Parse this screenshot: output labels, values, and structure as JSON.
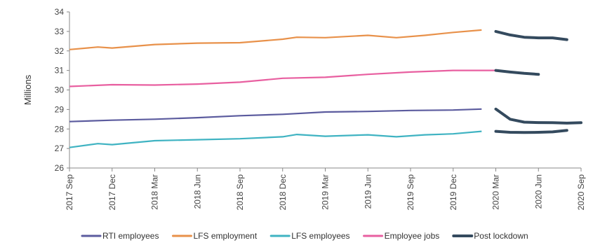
{
  "chart_data": {
    "type": "line",
    "ylabel": "Millions",
    "ylim": [
      26,
      34
    ],
    "yticks": [
      26,
      27,
      28,
      29,
      30,
      31,
      32,
      33,
      34
    ],
    "x_start": "2017 Sep",
    "x_end": "2020 Sep",
    "x_tick_labels": [
      "2017 Sep",
      "2017 Dec",
      "2018 Mar",
      "2018 Jun",
      "2018 Sep",
      "2018 Dec",
      "2019 Mar",
      "2019 Jun",
      "2019 Sep",
      "2019 Dec",
      "2020 Mar",
      "2020 Jun",
      "2020 Sep"
    ],
    "grid": false,
    "legend_position": "bottom",
    "series": [
      {
        "name": "RTI employees",
        "color": "#5b5b9e",
        "points": [
          [
            "2017 Sep",
            28.38
          ],
          [
            "2017 Dec",
            28.45
          ],
          [
            "2018 Mar",
            28.5
          ],
          [
            "2018 Jun",
            28.58
          ],
          [
            "2018 Sep",
            28.68
          ],
          [
            "2018 Dec",
            28.75
          ],
          [
            "2019 Mar",
            28.87
          ],
          [
            "2019 Jun",
            28.9
          ],
          [
            "2019 Sep",
            28.95
          ],
          [
            "2019 Dec",
            28.97
          ],
          [
            "2020 Feb",
            29.02
          ]
        ]
      },
      {
        "name": "LFS employment",
        "color": "#e8914a",
        "points": [
          [
            "2017 Sep",
            32.07
          ],
          [
            "2017 Nov",
            32.2
          ],
          [
            "2017 Dec",
            32.15
          ],
          [
            "2018 Mar",
            32.33
          ],
          [
            "2018 Jun",
            32.4
          ],
          [
            "2018 Sep",
            32.42
          ],
          [
            "2018 Dec",
            32.6
          ],
          [
            "2019 Jan",
            32.7
          ],
          [
            "2019 Mar",
            32.68
          ],
          [
            "2019 Jun",
            32.8
          ],
          [
            "2019 Aug",
            32.68
          ],
          [
            "2019 Oct",
            32.8
          ],
          [
            "2019 Dec",
            32.95
          ],
          [
            "2020 Feb",
            33.07
          ]
        ]
      },
      {
        "name": "LFS employees",
        "color": "#3fb3c2",
        "points": [
          [
            "2017 Sep",
            27.05
          ],
          [
            "2017 Nov",
            27.25
          ],
          [
            "2017 Dec",
            27.2
          ],
          [
            "2018 Mar",
            27.4
          ],
          [
            "2018 Jun",
            27.45
          ],
          [
            "2018 Sep",
            27.5
          ],
          [
            "2018 Dec",
            27.6
          ],
          [
            "2019 Jan",
            27.72
          ],
          [
            "2019 Mar",
            27.63
          ],
          [
            "2019 Jun",
            27.7
          ],
          [
            "2019 Aug",
            27.6
          ],
          [
            "2019 Oct",
            27.7
          ],
          [
            "2019 Dec",
            27.75
          ],
          [
            "2020 Feb",
            27.88
          ]
        ]
      },
      {
        "name": "Employee jobs",
        "color": "#e85fa0",
        "points": [
          [
            "2017 Sep",
            30.18
          ],
          [
            "2017 Dec",
            30.27
          ],
          [
            "2018 Mar",
            30.25
          ],
          [
            "2018 Jun",
            30.3
          ],
          [
            "2018 Sep",
            30.4
          ],
          [
            "2018 Dec",
            30.6
          ],
          [
            "2019 Mar",
            30.65
          ],
          [
            "2019 Jun",
            30.8
          ],
          [
            "2019 Sep",
            30.92
          ],
          [
            "2019 Dec",
            31.0
          ],
          [
            "2020 Mar",
            31.0
          ]
        ]
      },
      {
        "name": "Post lockdown",
        "color": "#344a5e",
        "points": []
      }
    ],
    "post_lockdown_segments": [
      [
        [
          "2020 Mar",
          33.0
        ],
        [
          "2020 Apr",
          32.82
        ],
        [
          "2020 May",
          32.7
        ],
        [
          "2020 Jun",
          32.67
        ],
        [
          "2020 Jul",
          32.67
        ],
        [
          "2020 Aug",
          32.58
        ]
      ],
      [
        [
          "2020 Mar",
          31.0
        ],
        [
          "2020 Apr",
          30.92
        ],
        [
          "2020 May",
          30.85
        ],
        [
          "2020 Jun",
          30.8
        ]
      ],
      [
        [
          "2020 Mar",
          29.02
        ],
        [
          "2020 Apr",
          28.5
        ],
        [
          "2020 May",
          28.35
        ],
        [
          "2020 Jun",
          28.33
        ],
        [
          "2020 Jul",
          28.32
        ],
        [
          "2020 Aug",
          28.3
        ],
        [
          "2020 Sep",
          28.32
        ]
      ],
      [
        [
          "2020 Mar",
          27.88
        ],
        [
          "2020 Apr",
          27.83
        ],
        [
          "2020 May",
          27.82
        ],
        [
          "2020 Jun",
          27.83
        ],
        [
          "2020 Jul",
          27.85
        ],
        [
          "2020 Aug",
          27.93
        ]
      ]
    ]
  }
}
